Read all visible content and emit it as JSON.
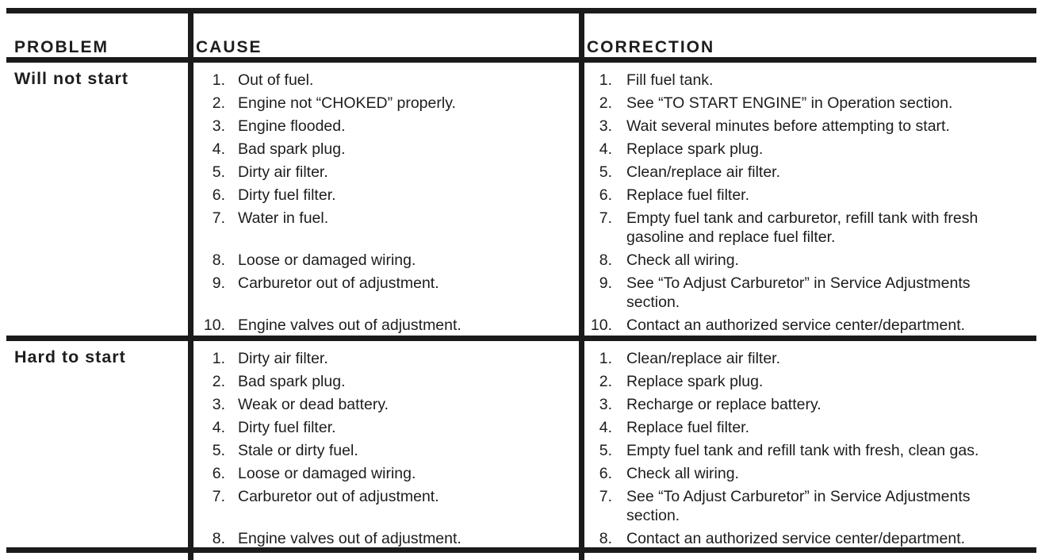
{
  "colors": {
    "border": "#1b1b1b",
    "text": "#1d1d1d",
    "background": "#ffffff"
  },
  "table": {
    "headers": {
      "problem": "PROBLEM",
      "cause": "CAUSE",
      "correction": "CORRECTION"
    },
    "rows": [
      {
        "problem": "Will not start",
        "items": [
          {
            "num": "1.",
            "cause": "Out of fuel.",
            "correction": "Fill fuel tank."
          },
          {
            "num": "2.",
            "cause": "Engine not “CHOKED” properly.",
            "correction": "See “TO START ENGINE” in Operation section."
          },
          {
            "num": "3.",
            "cause": "Engine flooded.",
            "correction": "Wait several minutes before attempting to start."
          },
          {
            "num": "4.",
            "cause": "Bad spark plug.",
            "correction": "Replace spark plug."
          },
          {
            "num": "5.",
            "cause": "Dirty air filter.",
            "correction": "Clean/replace air filter."
          },
          {
            "num": "6.",
            "cause": "Dirty fuel filter.",
            "correction": "Replace fuel filter."
          },
          {
            "num": "7.",
            "cause": "Water in fuel.",
            "correction": "Empty fuel tank and carburetor, refill tank with fresh",
            "correction_cont": "gasoline and replace fuel filter."
          },
          {
            "num": "8.",
            "cause": "Loose or damaged wiring.",
            "correction": "Check all wiring."
          },
          {
            "num": "9.",
            "cause": "Carburetor out of adjustment.",
            "correction": "See “To Adjust Carburetor” in Service Adjustments",
            "correction_cont": "section."
          },
          {
            "num": "10.",
            "cause": "Engine valves out of adjustment.",
            "correction": "Contact an authorized service center/department."
          }
        ]
      },
      {
        "problem": "Hard to start",
        "items": [
          {
            "num": "1.",
            "cause": "Dirty air filter.",
            "correction": "Clean/replace air filter."
          },
          {
            "num": "2.",
            "cause": "Bad spark plug.",
            "correction": "Replace spark plug."
          },
          {
            "num": "3.",
            "cause": "Weak or dead battery.",
            "correction": "Recharge or replace battery."
          },
          {
            "num": "4.",
            "cause": "Dirty fuel filter.",
            "correction": "Replace fuel filter."
          },
          {
            "num": "5.",
            "cause": "Stale or dirty fuel.",
            "correction": "Empty fuel tank and refill tank with fresh, clean gas."
          },
          {
            "num": "6.",
            "cause": "Loose or damaged wiring.",
            "correction": "Check all wiring."
          },
          {
            "num": "7.",
            "cause": "Carburetor out of adjustment.",
            "correction": "See “To Adjust Carburetor” in Service Adjustments",
            "correction_cont": "section."
          },
          {
            "num": "8.",
            "cause": "Engine valves out of adjustment.",
            "correction": "Contact an authorized service center/department."
          }
        ]
      }
    ]
  }
}
